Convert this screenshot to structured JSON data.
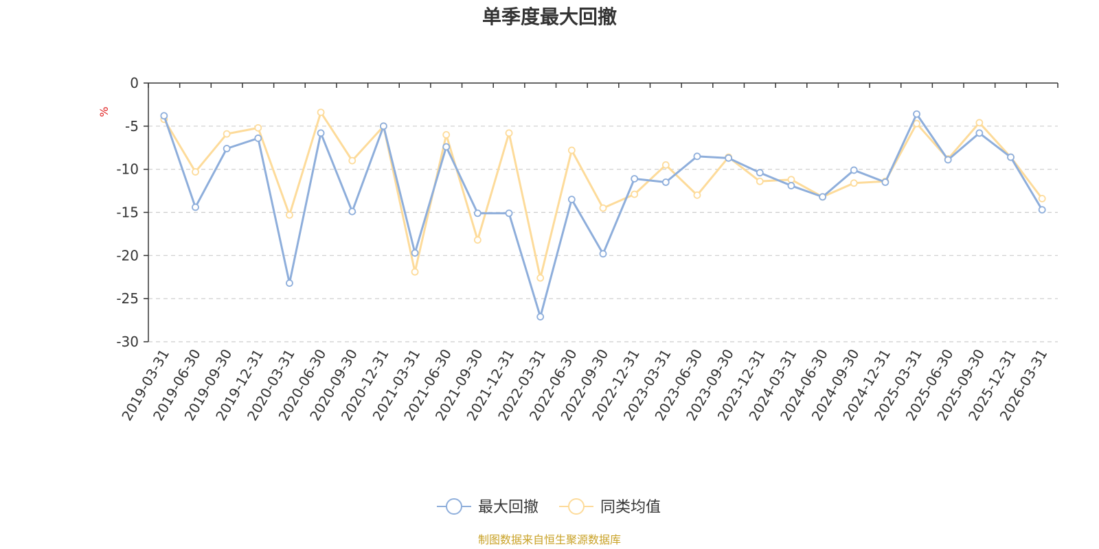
{
  "chart_data": {
    "type": "line",
    "title": "单季度最大回撤",
    "ylabel": "%",
    "ylim": [
      -30,
      0
    ],
    "yticks": [
      0,
      -5,
      -10,
      -15,
      -20,
      -25,
      -30
    ],
    "grid": true,
    "legend_position": "bottom",
    "categories": [
      "2019-03-31",
      "2019-06-30",
      "2019-09-30",
      "2019-12-31",
      "2020-03-31",
      "2020-06-30",
      "2020-09-30",
      "2020-12-31",
      "2021-03-31",
      "2021-06-30",
      "2021-09-30",
      "2021-12-31",
      "2022-03-31",
      "2022-06-30",
      "2022-09-30",
      "2022-12-31",
      "2023-03-31",
      "2023-06-30",
      "2023-09-30",
      "2023-12-31",
      "2024-03-31",
      "2024-06-30",
      "2024-09-30",
      "2024-12-31",
      "2025-03-31",
      "2025-06-30",
      "2025-09-30",
      "2025-12-31",
      "2026-03-31"
    ],
    "series": [
      {
        "name": "最大回撤",
        "color": "#8eaedb",
        "values": [
          -3.8,
          -14.4,
          -7.6,
          -6.4,
          -23.2,
          -5.8,
          -14.9,
          -5.0,
          -19.7,
          -7.4,
          -15.1,
          -15.1,
          -27.1,
          -13.5,
          -19.8,
          -11.1,
          -11.5,
          -8.5,
          -8.7,
          -10.4,
          -11.9,
          -13.2,
          -10.1,
          -11.5,
          -3.6,
          -8.9,
          -5.8,
          -8.6,
          -14.7
        ]
      },
      {
        "name": "同类均值",
        "color": "#fddb9a",
        "values": [
          -4.2,
          -10.3,
          -5.9,
          -5.2,
          -15.3,
          -3.4,
          -9.0,
          -5.0,
          -21.9,
          -6.0,
          -18.2,
          -5.8,
          -22.6,
          -7.8,
          -14.5,
          -12.9,
          -9.5,
          -13.0,
          -8.6,
          -11.4,
          -11.2,
          -13.2,
          -11.6,
          -11.4,
          -4.7,
          -8.8,
          -4.6,
          -8.6,
          -13.4
        ]
      }
    ],
    "source_note": "制图数据来自恒生聚源数据库"
  },
  "colors": {
    "axis": "#333333",
    "grid": "#cccccc",
    "unit_label": "#e02020",
    "source_note": "#c9a227"
  }
}
